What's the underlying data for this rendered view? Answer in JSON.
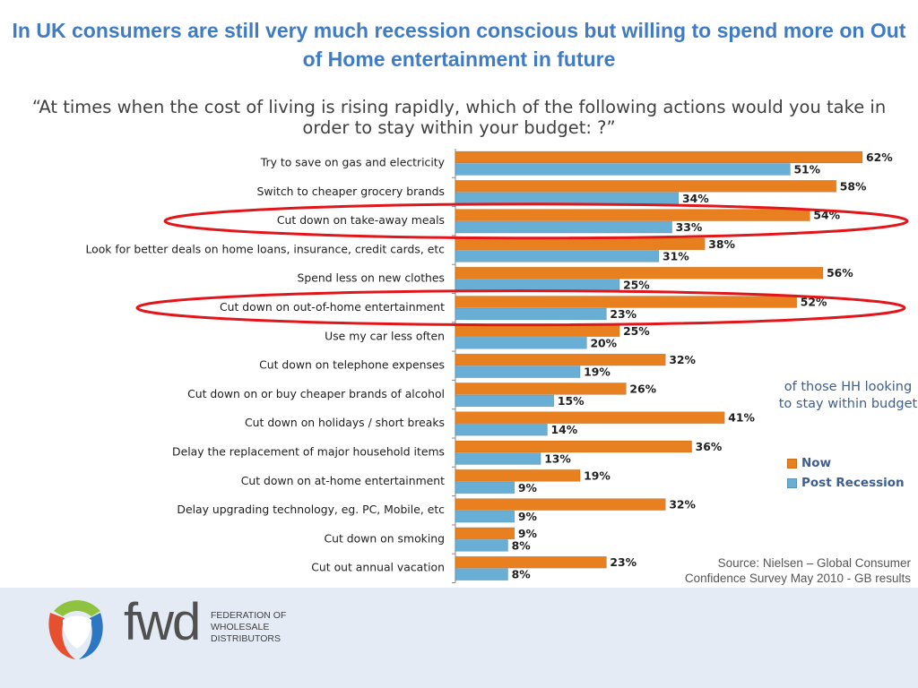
{
  "headline": "In UK consumers are still very much recession conscious but willing to spend more on Out of Home entertainment in future",
  "question": "“At times when the cost of living is rising rapidly, which of the following actions would you take in order to stay within your budget:  ?”",
  "note": "of those HH looking to stay within budget",
  "source": {
    "line1": "Source: Nielsen – Global Consumer",
    "line2": "Confidence Survey May 2010 - GB results"
  },
  "logo": {
    "word": "fwd",
    "org_line1": "FEDERATION OF",
    "org_line2": "WHOLESALE",
    "org_line3": "DISTRIBUTORS"
  },
  "colors": {
    "now": "#e8801f",
    "post": "#69aed4",
    "highlight_ring": "#e0161b",
    "title": "#3f7cc4"
  },
  "chart_data": {
    "type": "bar",
    "orientation": "horizontal",
    "categories": [
      "Try to save on gas and electricity",
      "Switch to cheaper grocery brands",
      "Cut down on take-away meals",
      "Look for better deals on home loans, insurance, credit cards, etc",
      "Spend less on new clothes",
      "Cut down on out-of-home entertainment",
      "Use my car less often",
      "Cut down on telephone expenses",
      "Cut down on or buy cheaper brands of alcohol",
      "Cut down on holidays / short breaks",
      "Delay the replacement of major household items",
      "Cut down on at-home entertainment",
      "Delay upgrading technology, eg. PC, Mobile, etc",
      "Cut down on smoking",
      "Cut out annual vacation"
    ],
    "series": [
      {
        "name": "Now",
        "values": [
          62,
          58,
          54,
          38,
          56,
          52,
          25,
          32,
          26,
          41,
          36,
          19,
          32,
          9,
          23
        ]
      },
      {
        "name": "Post Recession",
        "values": [
          51,
          34,
          33,
          31,
          25,
          23,
          20,
          19,
          15,
          14,
          13,
          9,
          9,
          8,
          8
        ]
      }
    ],
    "value_suffix": "%",
    "xlim": [
      0,
      70
    ],
    "grid": false,
    "legend_position": "right",
    "highlighted_categories": [
      "Cut down on take-away meals",
      "Cut down on out-of-home entertainment"
    ]
  }
}
